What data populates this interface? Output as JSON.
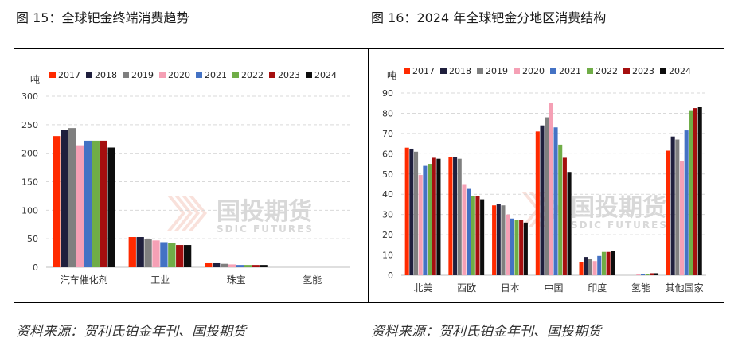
{
  "figures": {
    "left_title": "图 15：全球钯金终端消费趋势",
    "right_title": "图 16：2024 年全球钯金分地区消费结构",
    "left_source": "资料来源：贺利氏铂金年刊、国投期货",
    "right_source": "资料来源：贺利氏铂金年刊、国投期货",
    "watermark_cn": "国投期货",
    "watermark_en": "SDIC FUTURES"
  },
  "colors": {
    "2017": "#ff2a00",
    "2018": "#1f1f3d",
    "2019": "#7f7f7f",
    "2020": "#f5a0b5",
    "2021": "#4472c4",
    "2022": "#70ad47",
    "2023": "#a50f0f",
    "2024": "#0d0d0d"
  },
  "chart_data": [
    {
      "type": "bar",
      "unit_label": "吨",
      "categories": [
        "汽车催化剂",
        "工业",
        "珠宝",
        "氢能"
      ],
      "ylim": [
        0,
        300
      ],
      "yticks": [
        0,
        50,
        100,
        150,
        200,
        250,
        300
      ],
      "grid": true,
      "legend_position": "top",
      "series": [
        {
          "name": "2017",
          "values": [
            230,
            53,
            7,
            0
          ]
        },
        {
          "name": "2018",
          "values": [
            240,
            53,
            7,
            0
          ]
        },
        {
          "name": "2019",
          "values": [
            244,
            49,
            6,
            0
          ]
        },
        {
          "name": "2020",
          "values": [
            214,
            47,
            5,
            0
          ]
        },
        {
          "name": "2021",
          "values": [
            222,
            44,
            4,
            0
          ]
        },
        {
          "name": "2022",
          "values": [
            222,
            42,
            4,
            0
          ]
        },
        {
          "name": "2023",
          "values": [
            222,
            39,
            4,
            0
          ]
        },
        {
          "name": "2024",
          "values": [
            210,
            39,
            4,
            0
          ]
        }
      ]
    },
    {
      "type": "bar",
      "unit_label": "吨",
      "categories": [
        "北美",
        "西欧",
        "日本",
        "中国",
        "印度",
        "氢能",
        "其他国家"
      ],
      "ylim": [
        0,
        90
      ],
      "yticks": [
        0,
        10,
        20,
        30,
        40,
        50,
        60,
        70,
        80,
        90
      ],
      "grid": true,
      "legend_position": "top",
      "series": [
        {
          "name": "2017",
          "values": [
            63,
            58.5,
            34.5,
            71,
            6.5,
            0,
            61.5
          ]
        },
        {
          "name": "2018",
          "values": [
            62.5,
            58.5,
            35,
            74,
            9,
            0,
            68.5
          ]
        },
        {
          "name": "2019",
          "values": [
            61,
            57.5,
            34.5,
            78,
            8,
            0,
            67
          ]
        },
        {
          "name": "2020",
          "values": [
            49.5,
            45,
            30,
            85,
            7,
            0.5,
            56.5
          ]
        },
        {
          "name": "2021",
          "values": [
            54,
            43,
            28,
            73,
            9.5,
            0.5,
            71.5
          ]
        },
        {
          "name": "2022",
          "values": [
            55,
            39,
            27.5,
            64.5,
            11.5,
            0.5,
            81.5
          ]
        },
        {
          "name": "2023",
          "values": [
            58,
            39,
            27.5,
            58,
            11.5,
            1,
            82.5
          ]
        },
        {
          "name": "2024",
          "values": [
            57.5,
            37.5,
            26,
            51,
            12,
            1,
            83
          ]
        }
      ]
    }
  ]
}
